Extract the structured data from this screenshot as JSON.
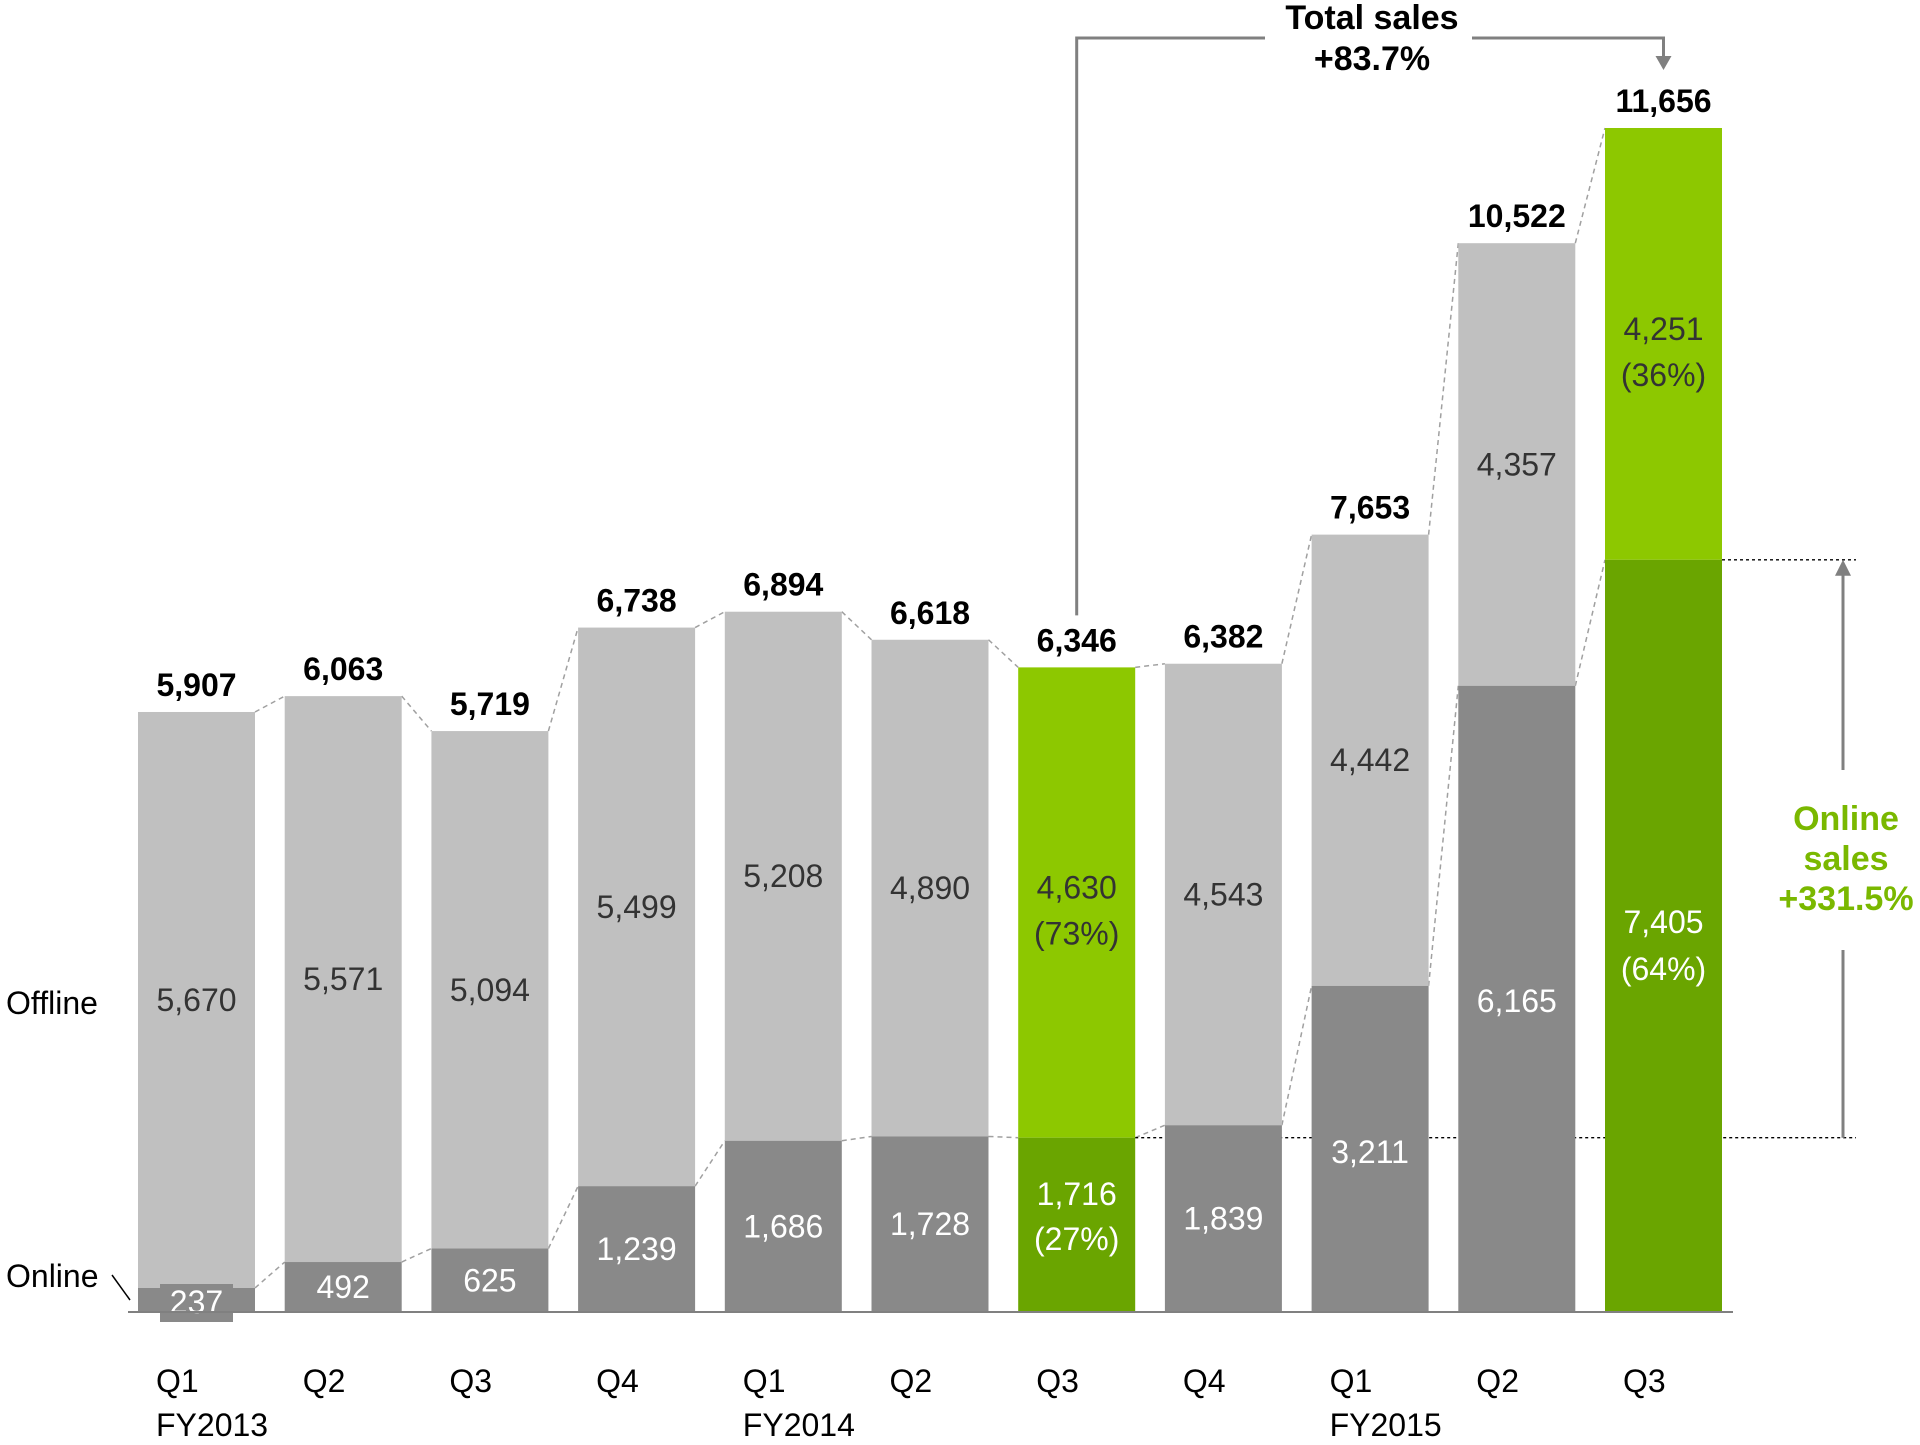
{
  "chart_data": {
    "type": "bar",
    "stacked": true,
    "categories": [
      "Q1",
      "Q2",
      "Q3",
      "Q4",
      "Q1",
      "Q2",
      "Q3",
      "Q4",
      "Q1",
      "Q2",
      "Q3"
    ],
    "year_labels": [
      "FY2013",
      "",
      "",
      "",
      "FY2014",
      "",
      "",
      "",
      "FY2015",
      "",
      ""
    ],
    "series": [
      {
        "name": "Online",
        "values": [
          237,
          492,
          625,
          1239,
          1686,
          1728,
          1716,
          1839,
          3211,
          6165,
          7405
        ]
      },
      {
        "name": "Offline",
        "values": [
          5670,
          5571,
          5094,
          5499,
          5208,
          4890,
          4630,
          4543,
          4442,
          4357,
          4251
        ]
      }
    ],
    "totals": [
      5907,
      6063,
      5719,
      6738,
      6894,
      6618,
      6346,
      6382,
      7653,
      10522,
      11656
    ],
    "total_labels": [
      "5,907",
      "6,063",
      "5,719",
      "6,738",
      "6,894",
      "6,618",
      "6,346",
      "6,382",
      "7,653",
      "10,522",
      "11,656"
    ],
    "online_labels": [
      "237",
      "492",
      "625",
      "1,239",
      "1,686",
      "1,728",
      "1,716",
      "1,839",
      "3,211",
      "6,165",
      "7,405"
    ],
    "offline_labels": [
      "5,670",
      "5,571",
      "5,094",
      "5,499",
      "5,208",
      "4,890",
      "4,630",
      "4,543",
      "4,442",
      "4,357",
      "4,251"
    ],
    "online_pct_labels": [
      "",
      "",
      "",
      "",
      "",
      "",
      "(27%)",
      "",
      "",
      "",
      "(64%)"
    ],
    "offline_pct_labels": [
      "",
      "",
      "",
      "",
      "",
      "",
      "(73%)",
      "",
      "",
      "",
      "(36%)"
    ],
    "highlighted": [
      6,
      10
    ],
    "ylim": [
      0,
      11656
    ],
    "grid": false,
    "legend_placement": "left",
    "colors": {
      "offline": "#c0c0c0",
      "online": "#898989",
      "highlight_offline": "#8dc800",
      "highlight_online": "#6aa500",
      "accent_text": "#7ab800",
      "bracket": "#808080"
    },
    "annotations": {
      "total_sales_line1": "Total sales",
      "total_sales_line2": "+83.7%",
      "online_sales_line1": "Online",
      "online_sales_line2": "sales",
      "online_sales_line3": "+331.5%"
    }
  }
}
